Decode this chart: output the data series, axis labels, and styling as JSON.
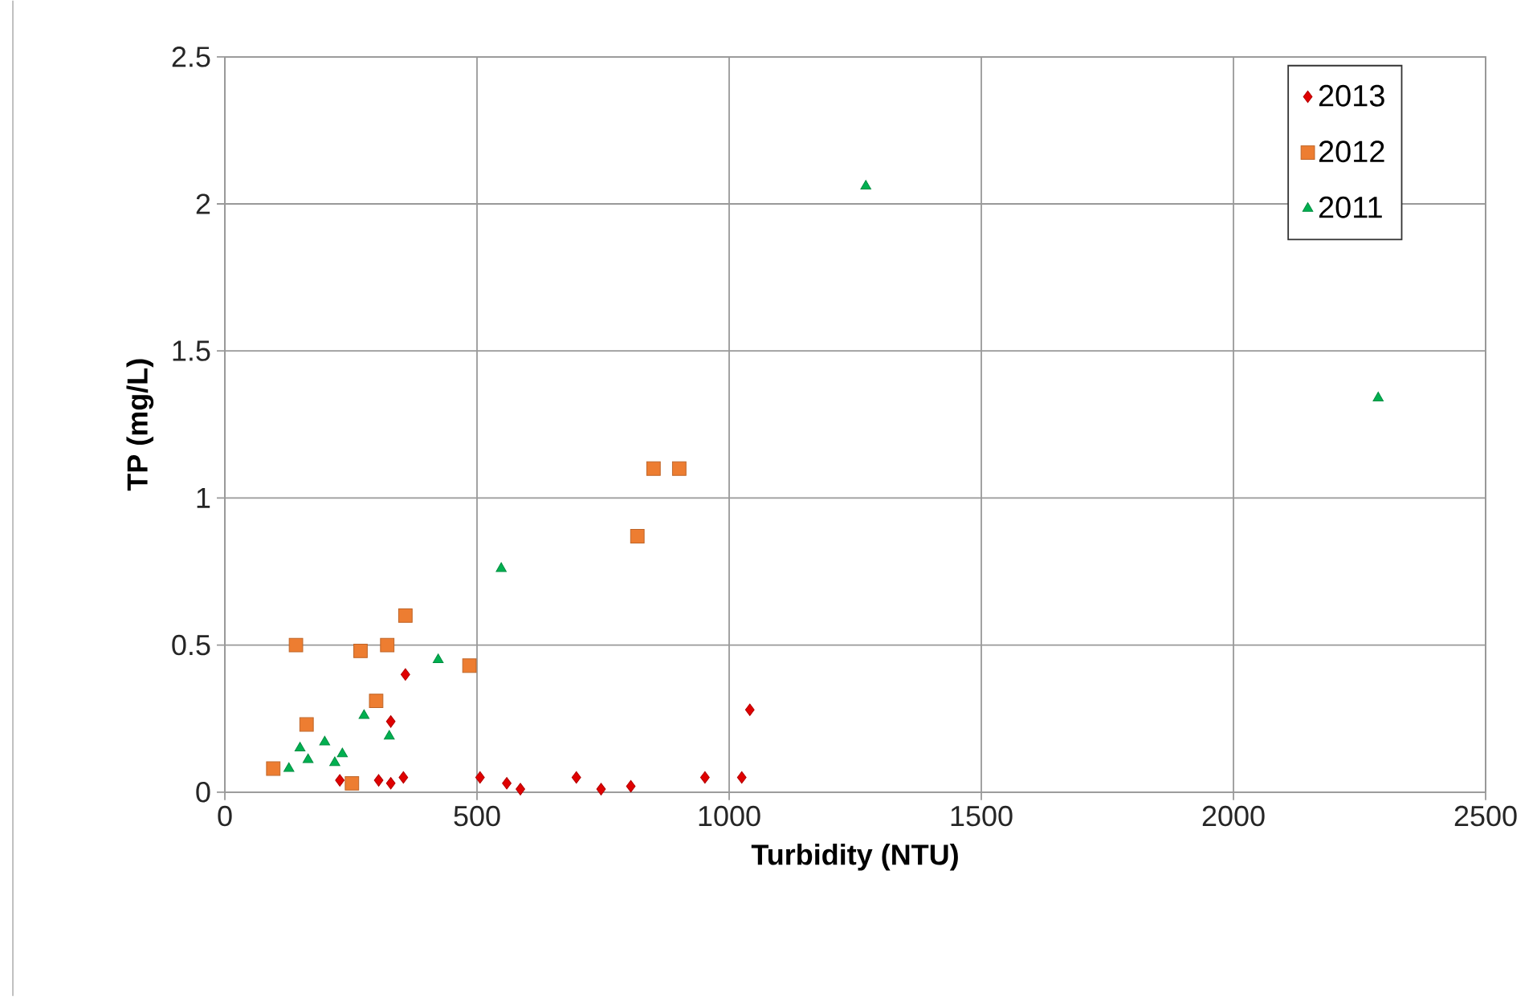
{
  "chart_data": {
    "type": "scatter",
    "xlabel": "Turbidity (NTU)",
    "ylabel": "TP (mg/L)",
    "xlim": [
      0,
      2500
    ],
    "xticks": [
      0,
      500,
      1000,
      1500,
      2000,
      2500
    ],
    "ylim": [
      0,
      2.5
    ],
    "yticks": [
      0,
      0.5,
      1,
      1.5,
      2,
      2.5
    ],
    "grid": true,
    "legend": "top right",
    "series": [
      {
        "name": "2013",
        "color": "#e00000",
        "marker": "diamond",
        "x": [
          228,
          305,
          329,
          354,
          329,
          358,
          506,
          559,
          586,
          697,
          746,
          805,
          952,
          1025,
          1041
        ],
        "values": [
          0.04,
          0.04,
          0.03,
          0.05,
          0.24,
          0.4,
          0.05,
          0.03,
          0.01,
          0.05,
          0.01,
          0.02,
          0.05,
          0.05,
          0.28
        ]
      },
      {
        "name": "2012",
        "color": "#ed7d31",
        "marker": "square",
        "x": [
          96,
          141,
          162,
          252,
          269,
          300,
          322,
          358,
          485,
          818,
          850,
          901
        ],
        "values": [
          0.08,
          0.5,
          0.23,
          0.03,
          0.48,
          0.31,
          0.5,
          0.6,
          0.43,
          0.87,
          1.1,
          1.1
        ]
      },
      {
        "name": "2011",
        "color": "#00b050",
        "marker": "triangle",
        "x": [
          127,
          149,
          165,
          198,
          218,
          233,
          276,
          326,
          423,
          548,
          1271,
          2287
        ],
        "values": [
          0.08,
          0.15,
          0.11,
          0.17,
          0.1,
          0.13,
          0.26,
          0.19,
          0.45,
          0.76,
          2.06,
          1.34
        ]
      }
    ]
  }
}
